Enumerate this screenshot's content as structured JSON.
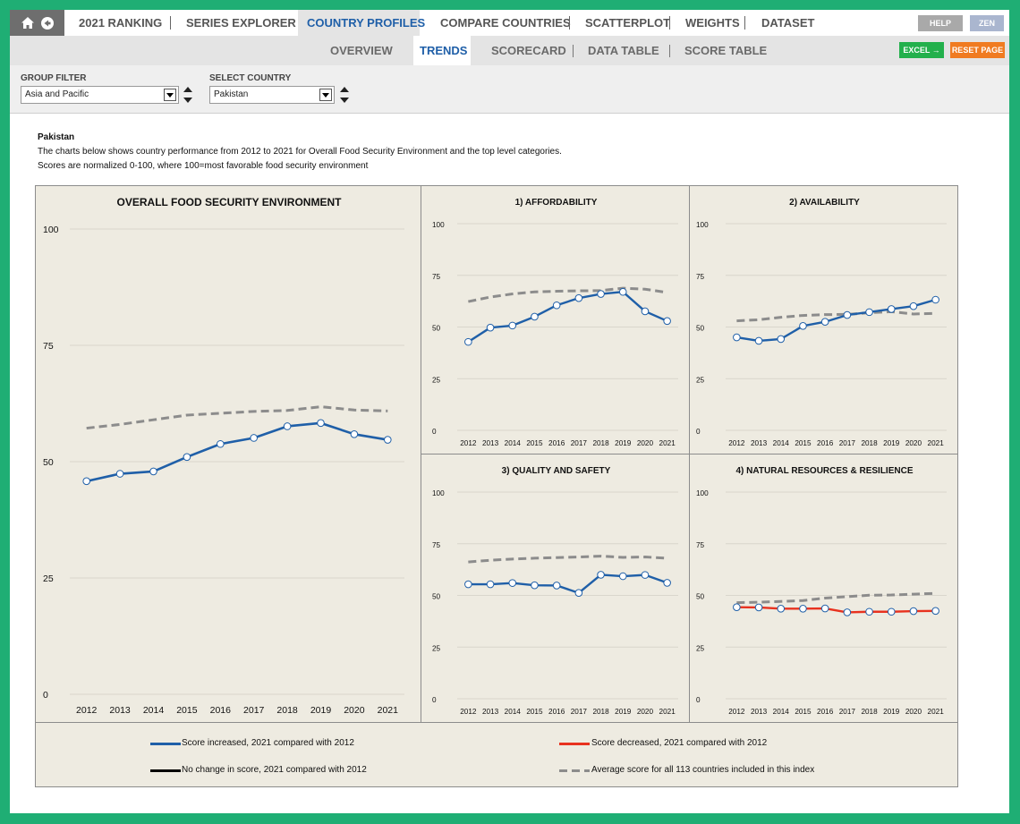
{
  "nav": {
    "items": [
      "2021 RANKING",
      "SERIES EXPLORER",
      "COUNTRY PROFILES",
      "COMPARE COUNTRIES",
      "SCATTERPLOT",
      "WEIGHTS",
      "DATASET"
    ],
    "help": "HELP",
    "zen": "ZEN"
  },
  "subnav": {
    "items": [
      "OVERVIEW",
      "TRENDS",
      "SCORECARD",
      "DATA TABLE",
      "SCORE TABLE"
    ],
    "excel": "EXCEL →",
    "reset": "RESET PAGE"
  },
  "filters": {
    "group_label": "GROUP FILTER",
    "group_value": "Asia and Pacific",
    "country_label": "SELECT COUNTRY",
    "country_value": "Pakistan"
  },
  "description": {
    "country": "Pakistan",
    "line1": "The charts below shows country performance from 2012 to 2021 for Overall Food Security Environment and the top level categories.",
    "line2": "Scores are normalized 0-100, where 100=most favorable food security environment"
  },
  "colors": {
    "increase": "#1f5fa8",
    "decrease": "#e8321f",
    "nochange": "#000000",
    "average": "#8c8c8c",
    "panel_bg": "#eeebe1",
    "excel_green": "#23b04c",
    "reset_orange": "#f07b21",
    "frame_green": "#1fae74"
  },
  "chart_data": [
    {
      "type": "line",
      "title": "OVERALL FOOD SECURITY ENVIRONMENT",
      "x": [
        "2012",
        "2013",
        "2014",
        "2015",
        "2016",
        "2017",
        "2018",
        "2019",
        "2020",
        "2021"
      ],
      "ylim": [
        0,
        100
      ],
      "yticks": [
        0,
        25,
        50,
        75,
        100
      ],
      "series": [
        {
          "trend": "increase",
          "values": [
            45.8,
            47.4,
            47.9,
            51.0,
            53.8,
            55.1,
            57.6,
            58.3,
            55.9,
            54.7
          ]
        },
        {
          "trend": "average",
          "values": [
            57.2,
            58.0,
            59.0,
            60.0,
            60.4,
            60.8,
            61.0,
            61.8,
            61.1,
            60.9
          ]
        }
      ]
    },
    {
      "type": "line",
      "title": "1) AFFORDABILITY",
      "x": [
        "2012",
        "2013",
        "2014",
        "2015",
        "2016",
        "2017",
        "2018",
        "2019",
        "2020",
        "2021"
      ],
      "ylim": [
        0,
        100
      ],
      "yticks": [
        0,
        25,
        50,
        75,
        100
      ],
      "series": [
        {
          "trend": "increase",
          "values": [
            42.8,
            49.7,
            50.7,
            55.0,
            60.5,
            64.0,
            66.0,
            67.0,
            57.6,
            52.9
          ]
        },
        {
          "trend": "average",
          "values": [
            62.3,
            64.5,
            66.0,
            67.0,
            67.3,
            67.5,
            67.6,
            68.8,
            68.3,
            66.7
          ]
        }
      ]
    },
    {
      "type": "line",
      "title": "2) AVAILABILITY",
      "x": [
        "2012",
        "2013",
        "2014",
        "2015",
        "2016",
        "2017",
        "2018",
        "2019",
        "2020",
        "2021"
      ],
      "ylim": [
        0,
        100
      ],
      "yticks": [
        0,
        25,
        50,
        75,
        100
      ],
      "series": [
        {
          "trend": "increase",
          "values": [
            45.0,
            43.3,
            44.2,
            50.5,
            52.5,
            55.8,
            57.2,
            58.7,
            60.1,
            63.2
          ]
        },
        {
          "trend": "average",
          "values": [
            53.0,
            53.5,
            54.7,
            55.6,
            56.0,
            56.1,
            56.9,
            57.4,
            56.3,
            56.6
          ]
        }
      ]
    },
    {
      "type": "line",
      "title": "3) QUALITY AND SAFETY",
      "x": [
        "2012",
        "2013",
        "2014",
        "2015",
        "2016",
        "2017",
        "2018",
        "2019",
        "2020",
        "2021"
      ],
      "ylim": [
        0,
        100
      ],
      "yticks": [
        0,
        25,
        50,
        75,
        100
      ],
      "series": [
        {
          "trend": "increase",
          "values": [
            55.4,
            55.4,
            56.0,
            54.9,
            54.8,
            51.2,
            60.0,
            59.3,
            59.9,
            56.1
          ]
        },
        {
          "trend": "average",
          "values": [
            66.2,
            67.0,
            67.6,
            68.0,
            68.3,
            68.6,
            69.0,
            68.4,
            68.6,
            68.0
          ]
        }
      ]
    },
    {
      "type": "line",
      "title": "4) NATURAL RESOURCES & RESILIENCE",
      "x": [
        "2012",
        "2013",
        "2014",
        "2015",
        "2016",
        "2017",
        "2018",
        "2019",
        "2020",
        "2021"
      ],
      "ylim": [
        0,
        100
      ],
      "yticks": [
        0,
        25,
        50,
        75,
        100
      ],
      "series": [
        {
          "trend": "decrease",
          "values": [
            44.3,
            44.2,
            43.6,
            43.6,
            43.7,
            41.8,
            42.1,
            42.1,
            42.4,
            42.5
          ]
        },
        {
          "trend": "average",
          "values": [
            46.5,
            46.7,
            47.1,
            47.5,
            48.7,
            49.4,
            50.1,
            50.2,
            50.6,
            51.0
          ]
        }
      ]
    }
  ],
  "legend": {
    "increase": "Score increased, 2021 compared with 2012",
    "decrease": "Score decreased, 2021 compared with 2012",
    "nochange": "No change in score, 2021 compared with 2012",
    "average": "Average score for all 113 countries included in this index"
  }
}
